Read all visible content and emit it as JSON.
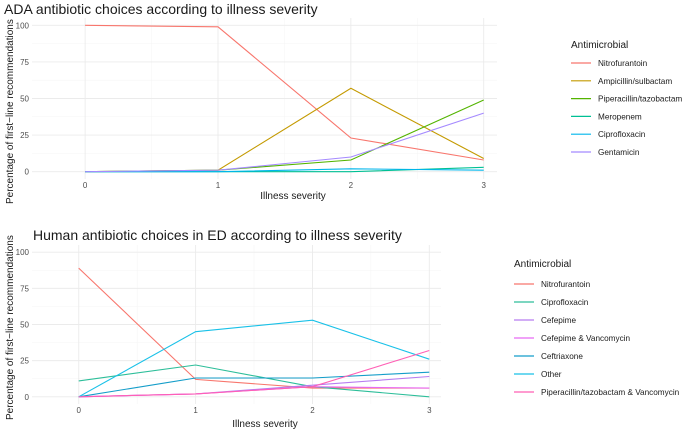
{
  "chart_data": [
    {
      "type": "line",
      "title": "ADA antibiotic choices according to illness severity",
      "xlabel": "Illness severity",
      "ylabel": "Percentage of first−line recommendations",
      "x": [
        0,
        1,
        2,
        3
      ],
      "xlim": [
        -0.4,
        3.1
      ],
      "ylim": [
        0,
        100
      ],
      "yticks": [
        0,
        25,
        50,
        75,
        100
      ],
      "grid": true,
      "legend_title": "Antimicrobial",
      "legend_position": "right",
      "series": [
        {
          "name": "Nitrofurantoin",
          "color": "#F8766D",
          "values": [
            100,
            99,
            23,
            8
          ]
        },
        {
          "name": "Ampicillin/sulbactam",
          "color": "#C49A00",
          "values": [
            0,
            1,
            57,
            9
          ]
        },
        {
          "name": "Piperacillin/tazobactam",
          "color": "#53B400",
          "values": [
            0,
            1,
            8,
            49
          ]
        },
        {
          "name": "Meropenem",
          "color": "#00C094",
          "values": [
            0,
            0,
            0,
            3
          ]
        },
        {
          "name": "Ciprofloxacin",
          "color": "#00B6EB",
          "values": [
            0,
            0,
            2,
            1
          ]
        },
        {
          "name": "Gentamicin",
          "color": "#A58AFF",
          "values": [
            0,
            1,
            10,
            40
          ]
        }
      ]
    },
    {
      "type": "line",
      "title": "Human antibiotic choices in ED according to illness severity",
      "xlabel": "Illness severity",
      "ylabel": "Percentage of first−line recommendations",
      "x": [
        0,
        1,
        2,
        3
      ],
      "xlim": [
        -0.4,
        3.1
      ],
      "ylim": [
        0,
        100
      ],
      "yticks": [
        0,
        25,
        50,
        75,
        100
      ],
      "grid": true,
      "legend_title": "Antimicrobial",
      "legend_position": "right",
      "series": [
        {
          "name": "Nitrofurantoin",
          "color": "#F8766D",
          "values": [
            89,
            12,
            6,
            6
          ]
        },
        {
          "name": "Ciprofloxacin",
          "color": "#2DBE9A",
          "values": [
            11,
            22,
            7,
            0
          ]
        },
        {
          "name": "Cefepime",
          "color": "#B77CF0",
          "values": [
            0,
            2,
            8,
            14
          ]
        },
        {
          "name": "Cefepime & Vancomycin",
          "color": "#E76BF3",
          "values": [
            0,
            2,
            7,
            6
          ]
        },
        {
          "name": "Ceftriaxone",
          "color": "#149DC9",
          "values": [
            0,
            13,
            13,
            17
          ]
        },
        {
          "name": "Other",
          "color": "#19C1E8",
          "values": [
            0,
            45,
            53,
            26
          ]
        },
        {
          "name": "Piperacillin/tazobactam & Vancomycin",
          "color": "#FF5FB5",
          "values": [
            0,
            2,
            7,
            32
          ]
        }
      ]
    }
  ]
}
